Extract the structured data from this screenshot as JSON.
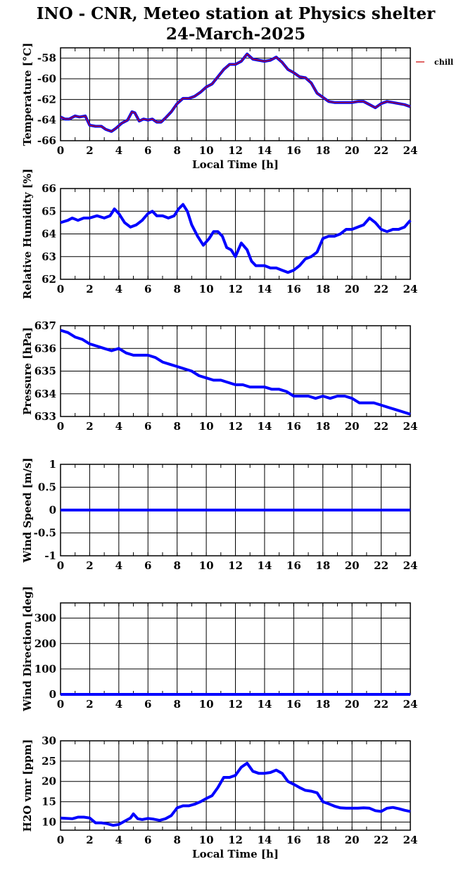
{
  "figure": {
    "title_line1": "INO - CNR, Meteo station at Physics shelter",
    "title_line2": "24-March-2025"
  },
  "colors": {
    "data_line": "#0000ff",
    "temperature_overlay": "#cc0000",
    "grid": "#000000",
    "background": "#ffffff"
  },
  "chart_data": [
    {
      "id": "temperature",
      "type": "line",
      "ylabel": "Temperature [°C]",
      "xlabel": "Local Time [h]",
      "xlim": [
        0,
        24
      ],
      "ylim": [
        -66,
        -57
      ],
      "xticks": [
        0,
        2,
        4,
        6,
        8,
        10,
        12,
        14,
        16,
        18,
        20,
        22,
        24
      ],
      "yticks": [
        -66,
        -64,
        -62,
        -60,
        -58
      ],
      "grid": true,
      "legend": {
        "position": "outside-right",
        "entries": [
          "chill"
        ]
      },
      "series": [
        {
          "name": "chill",
          "x": [
            0,
            0.3,
            0.6,
            1.0,
            1.3,
            1.7,
            2.0,
            2.4,
            2.8,
            3.1,
            3.5,
            3.8,
            4.2,
            4.6,
            4.9,
            5.1,
            5.4,
            5.7,
            6.0,
            6.3,
            6.6,
            6.9,
            7.2,
            7.6,
            8.0,
            8.4,
            8.8,
            9.2,
            9.6,
            10.0,
            10.4,
            10.8,
            11.2,
            11.6,
            12.0,
            12.4,
            12.8,
            13.2,
            13.6,
            14.0,
            14.4,
            14.8,
            15.2,
            15.6,
            16.0,
            16.4,
            16.8,
            17.2,
            17.6,
            18.0,
            18.4,
            18.8,
            19.2,
            19.6,
            20.0,
            20.4,
            20.8,
            21.2,
            21.6,
            22.0,
            22.4,
            22.8,
            23.2,
            23.6,
            24.0
          ],
          "y": [
            -63.7,
            -63.9,
            -63.9,
            -63.6,
            -63.7,
            -63.6,
            -64.5,
            -64.6,
            -64.6,
            -64.9,
            -65.1,
            -64.8,
            -64.3,
            -64.0,
            -63.2,
            -63.3,
            -64.1,
            -63.9,
            -64.0,
            -63.9,
            -64.2,
            -64.2,
            -63.8,
            -63.2,
            -62.4,
            -61.9,
            -61.9,
            -61.7,
            -61.3,
            -60.8,
            -60.5,
            -59.8,
            -59.1,
            -58.6,
            -58.6,
            -58.3,
            -57.6,
            -58.1,
            -58.2,
            -58.3,
            -58.2,
            -57.9,
            -58.4,
            -59.1,
            -59.4,
            -59.8,
            -59.9,
            -60.4,
            -61.4,
            -61.8,
            -62.2,
            -62.3,
            -62.3,
            -62.3,
            -62.3,
            -62.2,
            -62.2,
            -62.5,
            -62.8,
            -62.4,
            -62.2,
            -62.3,
            -62.4,
            -62.5,
            -62.7
          ]
        }
      ]
    },
    {
      "id": "humidity",
      "type": "line",
      "ylabel": "Relative Humidity [%]",
      "xlabel": "",
      "xlim": [
        0,
        24
      ],
      "ylim": [
        62,
        66
      ],
      "xticks": [
        0,
        2,
        4,
        6,
        8,
        10,
        12,
        14,
        16,
        18,
        20,
        22,
        24
      ],
      "yticks": [
        62,
        63,
        64,
        65,
        66
      ],
      "grid": true,
      "series": [
        {
          "x": [
            0,
            0.5,
            0.8,
            1.2,
            1.6,
            2.0,
            2.5,
            3.0,
            3.4,
            3.7,
            4.0,
            4.4,
            4.8,
            5.2,
            5.6,
            6.0,
            6.3,
            6.6,
            7.0,
            7.4,
            7.8,
            8.1,
            8.4,
            8.7,
            9.0,
            9.4,
            9.8,
            10.2,
            10.5,
            10.8,
            11.1,
            11.4,
            11.7,
            12.0,
            12.4,
            12.8,
            13.1,
            13.4,
            13.7,
            14.0,
            14.4,
            14.8,
            15.2,
            15.6,
            16.0,
            16.4,
            16.8,
            17.2,
            17.6,
            18.0,
            18.4,
            18.8,
            19.2,
            19.6,
            20.0,
            20.4,
            20.8,
            21.2,
            21.6,
            22.0,
            22.4,
            22.8,
            23.2,
            23.6,
            24.0
          ],
          "y": [
            64.5,
            64.6,
            64.7,
            64.6,
            64.7,
            64.7,
            64.8,
            64.7,
            64.8,
            65.1,
            64.9,
            64.5,
            64.3,
            64.4,
            64.6,
            64.9,
            65.0,
            64.8,
            64.8,
            64.7,
            64.8,
            65.1,
            65.3,
            65.0,
            64.4,
            63.9,
            63.5,
            63.8,
            64.1,
            64.1,
            63.9,
            63.4,
            63.3,
            63.0,
            63.6,
            63.3,
            62.8,
            62.6,
            62.6,
            62.6,
            62.5,
            62.5,
            62.4,
            62.3,
            62.4,
            62.6,
            62.9,
            63.0,
            63.2,
            63.8,
            63.9,
            63.9,
            64.0,
            64.2,
            64.2,
            64.3,
            64.4,
            64.7,
            64.5,
            64.2,
            64.1,
            64.2,
            64.2,
            64.3,
            64.6
          ]
        }
      ]
    },
    {
      "id": "pressure",
      "type": "line",
      "ylabel": "Pressure [hPa]",
      "xlabel": "",
      "xlim": [
        0,
        24
      ],
      "ylim": [
        633,
        637
      ],
      "xticks": [
        0,
        2,
        4,
        6,
        8,
        10,
        12,
        14,
        16,
        18,
        20,
        22,
        24
      ],
      "yticks": [
        633,
        634,
        635,
        636,
        637
      ],
      "grid": true,
      "series": [
        {
          "x": [
            0,
            0.5,
            1.0,
            1.5,
            2.0,
            2.5,
            3.0,
            3.5,
            4.0,
            4.5,
            5.0,
            5.5,
            6.0,
            6.5,
            7.0,
            7.5,
            8.0,
            8.5,
            9.0,
            9.5,
            10.0,
            10.5,
            11.0,
            11.5,
            12.0,
            12.5,
            13.0,
            13.5,
            14.0,
            14.5,
            15.0,
            15.5,
            16.0,
            16.5,
            17.0,
            17.5,
            18.0,
            18.5,
            19.0,
            19.5,
            20.0,
            20.5,
            21.0,
            21.5,
            22.0,
            22.5,
            23.0,
            23.5,
            24.0
          ],
          "y": [
            636.8,
            636.7,
            636.5,
            636.4,
            636.2,
            636.1,
            636.0,
            635.9,
            636.0,
            635.8,
            635.7,
            635.7,
            635.7,
            635.6,
            635.4,
            635.3,
            635.2,
            635.1,
            635.0,
            634.8,
            634.7,
            634.6,
            634.6,
            634.5,
            634.4,
            634.4,
            634.3,
            634.3,
            634.3,
            634.2,
            634.2,
            634.1,
            633.9,
            633.9,
            633.9,
            633.8,
            633.9,
            633.8,
            633.9,
            633.9,
            633.8,
            633.6,
            633.6,
            633.6,
            633.5,
            633.4,
            633.3,
            633.2,
            633.1
          ]
        }
      ]
    },
    {
      "id": "wind_speed",
      "type": "line",
      "ylabel": "Wind Speed [m/s]",
      "xlabel": "",
      "xlim": [
        0,
        24
      ],
      "ylim": [
        -1,
        1
      ],
      "xticks": [
        0,
        2,
        4,
        6,
        8,
        10,
        12,
        14,
        16,
        18,
        20,
        22,
        24
      ],
      "yticks": [
        -1,
        -0.5,
        0,
        0.5,
        1
      ],
      "grid": true,
      "series": [
        {
          "x": [
            0,
            24
          ],
          "y": [
            0,
            0
          ]
        }
      ]
    },
    {
      "id": "wind_direction",
      "type": "line",
      "ylabel": "Wind Direction [deg]",
      "xlabel": "",
      "xlim": [
        0,
        24
      ],
      "ylim": [
        0,
        360
      ],
      "xticks": [
        0,
        2,
        4,
        6,
        8,
        10,
        12,
        14,
        16,
        18,
        20,
        22,
        24
      ],
      "yticks": [
        0,
        100,
        200,
        300
      ],
      "grid": true,
      "series": [
        {
          "x": [
            0,
            24
          ],
          "y": [
            0,
            0
          ]
        }
      ]
    },
    {
      "id": "h2o_vmr",
      "type": "line",
      "ylabel": "H2O vmr [ppm]",
      "xlabel": "Local Time [h]",
      "xlim": [
        0,
        24
      ],
      "ylim": [
        8,
        30
      ],
      "xticks": [
        0,
        2,
        4,
        6,
        8,
        10,
        12,
        14,
        16,
        18,
        20,
        22,
        24
      ],
      "yticks": [
        10,
        15,
        20,
        25,
        30
      ],
      "grid": true,
      "series": [
        {
          "x": [
            0,
            0.4,
            0.8,
            1.2,
            1.6,
            2.0,
            2.4,
            2.8,
            3.2,
            3.6,
            4.0,
            4.4,
            4.8,
            5.0,
            5.3,
            5.6,
            6.0,
            6.4,
            6.8,
            7.2,
            7.6,
            8.0,
            8.4,
            8.8,
            9.2,
            9.6,
            10.0,
            10.4,
            10.8,
            11.2,
            11.6,
            12.0,
            12.4,
            12.8,
            13.2,
            13.6,
            14.0,
            14.4,
            14.8,
            15.2,
            15.6,
            16.0,
            16.4,
            16.8,
            17.2,
            17.6,
            18.0,
            18.4,
            18.8,
            19.2,
            19.6,
            20.0,
            20.4,
            20.8,
            21.2,
            21.6,
            22.0,
            22.4,
            22.8,
            23.2,
            23.6,
            24.0
          ],
          "y": [
            11.0,
            10.9,
            10.8,
            11.2,
            11.2,
            11.0,
            9.8,
            9.8,
            9.6,
            9.2,
            9.4,
            10.2,
            11.0,
            12.0,
            10.8,
            10.6,
            10.9,
            10.7,
            10.4,
            10.8,
            11.6,
            13.5,
            14.0,
            14.0,
            14.4,
            15.0,
            15.8,
            16.5,
            18.5,
            21.0,
            21.0,
            21.5,
            23.5,
            24.5,
            22.5,
            22.0,
            22.0,
            22.2,
            22.8,
            22.0,
            20.0,
            19.3,
            18.5,
            17.8,
            17.6,
            17.2,
            15.0,
            14.5,
            13.9,
            13.5,
            13.4,
            13.4,
            13.4,
            13.5,
            13.4,
            12.8,
            12.6,
            13.4,
            13.6,
            13.3,
            12.9,
            12.6
          ]
        }
      ]
    }
  ]
}
